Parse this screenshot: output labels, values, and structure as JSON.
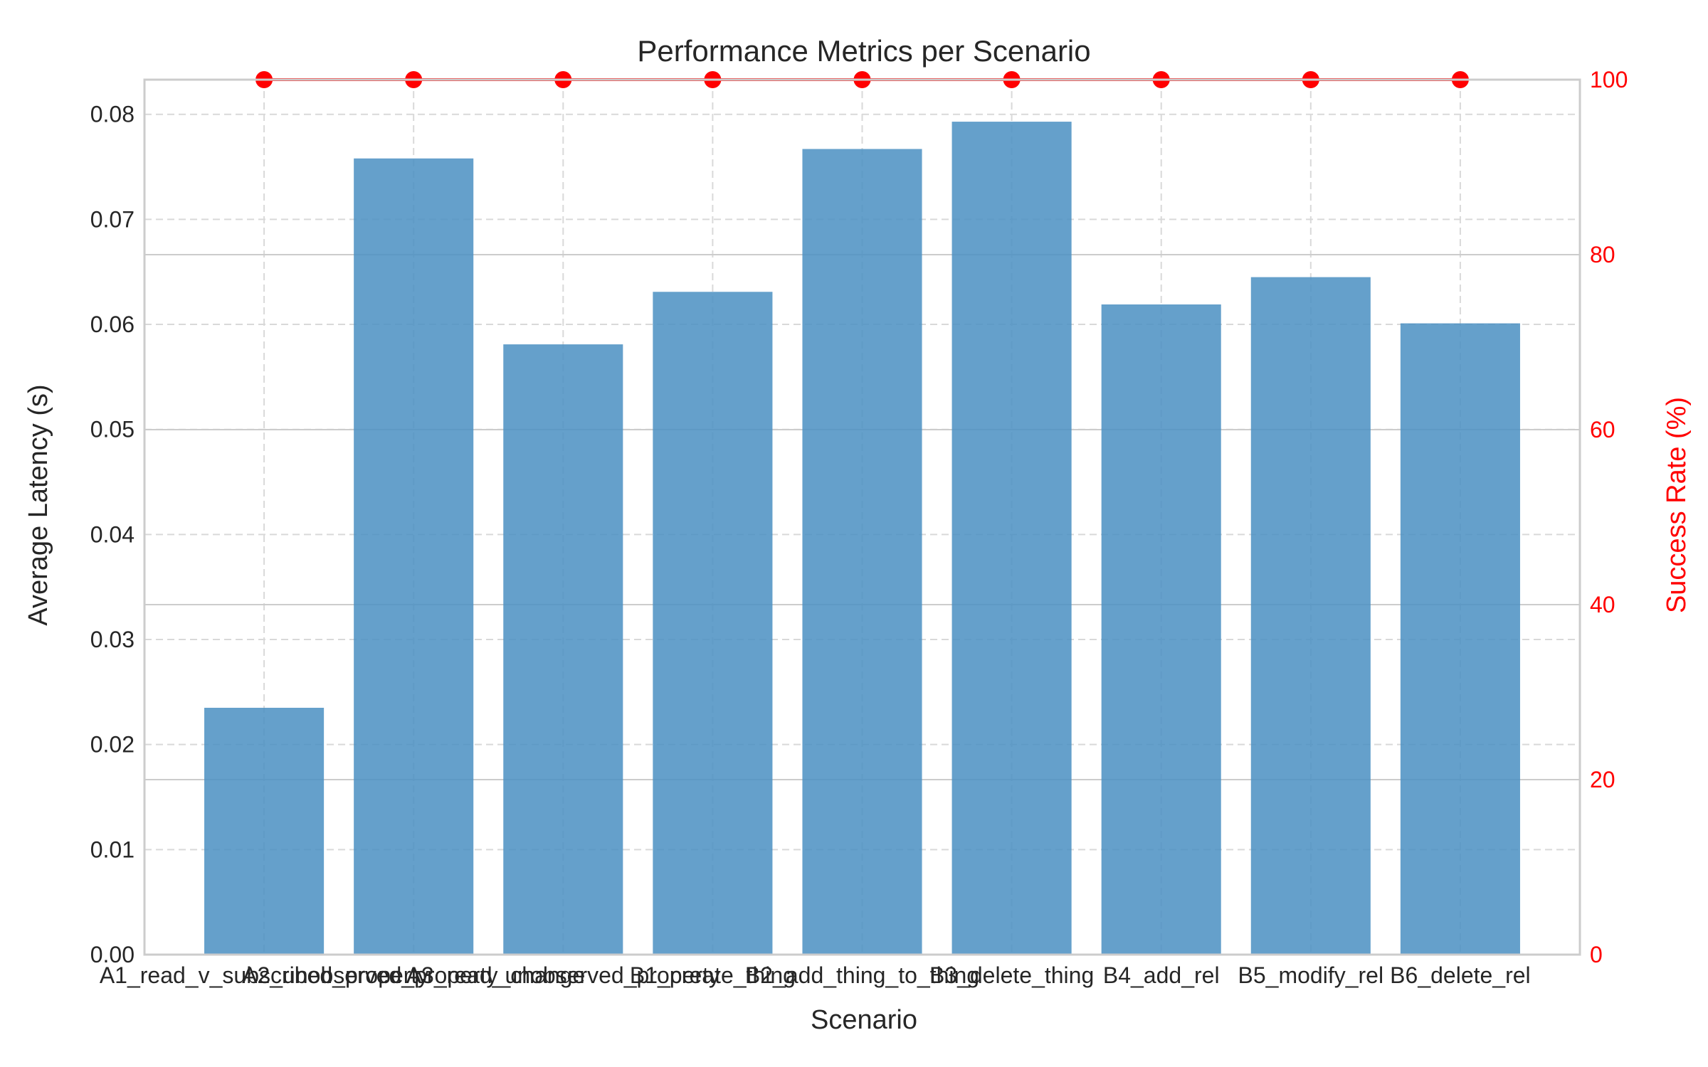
{
  "chart_data": {
    "type": "bar",
    "title": "Performance Metrics per Scenario",
    "xlabel": "Scenario",
    "ylabel": "Average Latency (s)",
    "y2label": "Success Rate (%)",
    "categories": [
      "A1_read_v_subscribed_property",
      "A2_unobserved_property_change",
      "A3_read_unobserved_property",
      "B1_create_thing",
      "B2_add_thing_to_thing",
      "B3_delete_thing",
      "B4_add_rel",
      "B5_modify_rel",
      "B6_delete_rel"
    ],
    "ylim": [
      0,
      0.0833
    ],
    "y2lim": [
      0,
      100
    ],
    "yticks": [
      "0.00",
      "0.01",
      "0.02",
      "0.03",
      "0.04",
      "0.05",
      "0.06",
      "0.07",
      "0.08"
    ],
    "y2ticks": [
      "0",
      "20",
      "40",
      "60",
      "80",
      "100"
    ],
    "series": [
      {
        "name": "Average Latency (s)",
        "type": "bar",
        "axis": "left",
        "values": [
          0.0235,
          0.0758,
          0.0581,
          0.0631,
          0.0767,
          0.0793,
          0.0619,
          0.0645,
          0.0601
        ]
      },
      {
        "name": "Success Rate (%)",
        "type": "line",
        "axis": "right",
        "values": [
          100,
          100,
          100,
          100,
          100,
          100,
          100,
          100,
          100
        ]
      }
    ],
    "grid": true,
    "colors": {
      "bar": "#4a8fc2",
      "line": "#ff0000",
      "text": "#262626",
      "grid": "#cccccc",
      "spine": "#cccccc"
    }
  }
}
